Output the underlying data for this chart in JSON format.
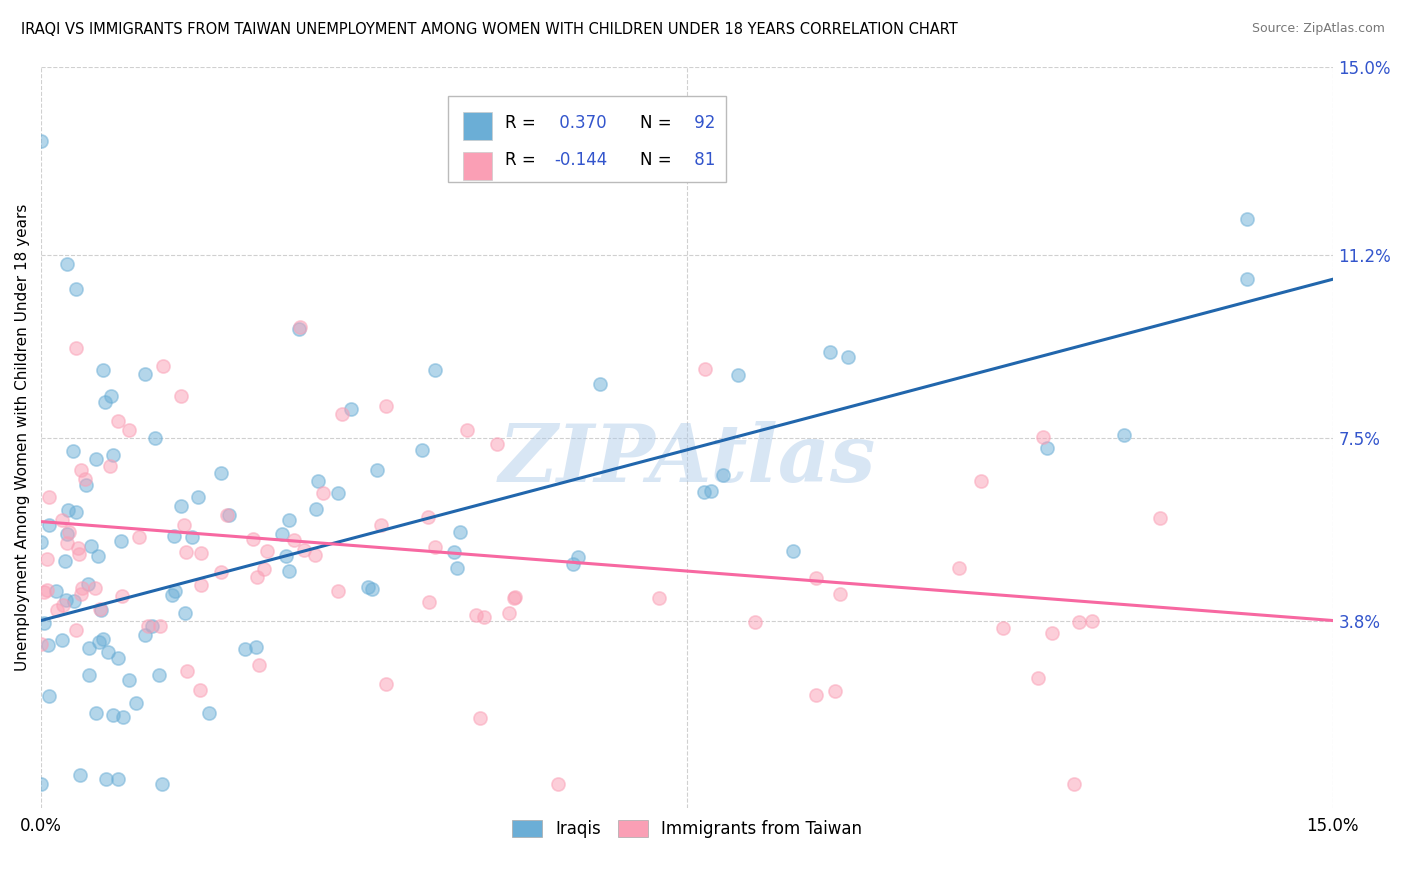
{
  "title": "IRAQI VS IMMIGRANTS FROM TAIWAN UNEMPLOYMENT AMONG WOMEN WITH CHILDREN UNDER 18 YEARS CORRELATION CHART",
  "source": "Source: ZipAtlas.com",
  "ylabel": "Unemployment Among Women with Children Under 18 years",
  "xmin": 0.0,
  "xmax": 0.15,
  "ymin": 0.0,
  "ymax": 0.15,
  "yticks": [
    0.038,
    0.075,
    0.112,
    0.15
  ],
  "ytick_labels": [
    "3.8%",
    "7.5%",
    "11.2%",
    "15.0%"
  ],
  "xtick_labels": [
    "0.0%",
    "15.0%"
  ],
  "iraqis_color": "#6baed6",
  "taiwan_color": "#fa9fb5",
  "iraqis_line_color": "#2166ac",
  "taiwan_line_color": "#f768a1",
  "watermark": "ZIPAtlas",
  "background_color": "#ffffff",
  "grid_color": "#d0d0d0",
  "legend_color": "#3355cc",
  "iraq_line_y0": 0.038,
  "iraq_line_y1": 0.107,
  "taiwan_line_y0": 0.058,
  "taiwan_line_y1": 0.038
}
